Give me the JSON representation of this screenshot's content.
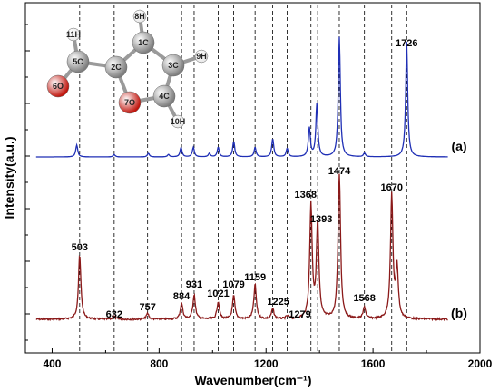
{
  "chart_data": {
    "type": "line",
    "xlabel": "Wavenumber(cm⁻¹)",
    "ylabel": "Intensity(a.u.)",
    "xlim": [
      300,
      2000
    ],
    "x_ticks": [
      "400",
      "800",
      "1200",
      "1600",
      "2000"
    ],
    "x_tick_values": [
      400,
      800,
      1200,
      1600,
      2000
    ],
    "grid": false,
    "dashed_reference_lines": [
      503,
      632,
      757,
      884,
      931,
      1021,
      1079,
      1159,
      1225,
      1279,
      1368,
      1393,
      1474,
      1568,
      1670,
      1726
    ],
    "series": [
      {
        "name": "(a)",
        "color": "#1f2fb5",
        "curve": "calculated",
        "peaks": [
          {
            "x": 492,
            "height": 0.1
          },
          {
            "x": 632,
            "height": 0.02
          },
          {
            "x": 760,
            "height": 0.03
          },
          {
            "x": 835,
            "height": 0.02
          },
          {
            "x": 882,
            "height": 0.08
          },
          {
            "x": 928,
            "height": 0.08
          },
          {
            "x": 988,
            "height": 0.03
          },
          {
            "x": 1021,
            "height": 0.08
          },
          {
            "x": 1079,
            "height": 0.13
          },
          {
            "x": 1159,
            "height": 0.08
          },
          {
            "x": 1225,
            "height": 0.15
          },
          {
            "x": 1279,
            "height": 0.07
          },
          {
            "x": 1362,
            "height": 0.24
          },
          {
            "x": 1390,
            "height": 0.44
          },
          {
            "x": 1474,
            "height": 1.0
          },
          {
            "x": 1568,
            "height": 0.03
          },
          {
            "x": 1726,
            "height": 0.96
          }
        ],
        "peak_labels": [
          {
            "x": 1726,
            "text": "1726"
          }
        ]
      },
      {
        "name": "(b)",
        "color": "#8b1a1a",
        "curve": "experimental",
        "peaks": [
          {
            "x": 503,
            "height": 0.44
          },
          {
            "x": 632,
            "height": 0.02
          },
          {
            "x": 757,
            "height": 0.04
          },
          {
            "x": 884,
            "height": 0.11
          },
          {
            "x": 931,
            "height": 0.17
          },
          {
            "x": 1021,
            "height": 0.12
          },
          {
            "x": 1079,
            "height": 0.16
          },
          {
            "x": 1159,
            "height": 0.24
          },
          {
            "x": 1225,
            "height": 0.07
          },
          {
            "x": 1279,
            "height": 0.02
          },
          {
            "x": 1368,
            "height": 0.78
          },
          {
            "x": 1393,
            "height": 0.66
          },
          {
            "x": 1474,
            "height": 1.0
          },
          {
            "x": 1568,
            "height": 0.08
          },
          {
            "x": 1670,
            "height": 0.85
          },
          {
            "x": 1690,
            "height": 0.35
          }
        ],
        "peak_labels": [
          {
            "x": 503,
            "text": "503"
          },
          {
            "x": 632,
            "text": "632"
          },
          {
            "x": 757,
            "text": "757"
          },
          {
            "x": 884,
            "text": "884"
          },
          {
            "x": 931,
            "text": "931"
          },
          {
            "x": 1021,
            "text": "1021"
          },
          {
            "x": 1079,
            "text": "1079"
          },
          {
            "x": 1159,
            "text": "1159"
          },
          {
            "x": 1225,
            "text": "1225"
          },
          {
            "x": 1279,
            "text": "1279"
          },
          {
            "x": 1368,
            "text": "1368"
          },
          {
            "x": 1393,
            "text": "1393"
          },
          {
            "x": 1474,
            "text": "1474"
          },
          {
            "x": 1568,
            "text": "1568"
          },
          {
            "x": 1670,
            "text": "1670"
          }
        ]
      }
    ],
    "molecule_labels": [
      "1C",
      "2C",
      "3C",
      "4C",
      "5C",
      "6O",
      "7O",
      "8H",
      "9H",
      "10H",
      "11H"
    ]
  },
  "colors": {
    "series_a": "#1f2fb5",
    "series_b": "#8b1a1a",
    "dashed_line": "#000000",
    "carbon": "#7d7d7d",
    "oxygen": "#c0140c",
    "hydrogen": "#e8e8e8"
  }
}
